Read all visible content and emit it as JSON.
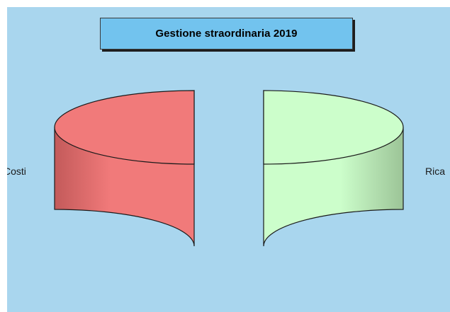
{
  "colors": {
    "background": "#a9d6ee",
    "title_box": "#72c3ee",
    "costi": "#f17a7a",
    "ricavi": "#ccfecb"
  },
  "chart_data": {
    "type": "pie",
    "style": "3d-exploded",
    "title": "Gestione straordinaria 2019",
    "slices": [
      {
        "label": "Costi",
        "value": 50
      },
      {
        "label": "Ricavi",
        "value": 50
      }
    ],
    "visible_labels": [
      "Costi",
      "Rica"
    ]
  }
}
